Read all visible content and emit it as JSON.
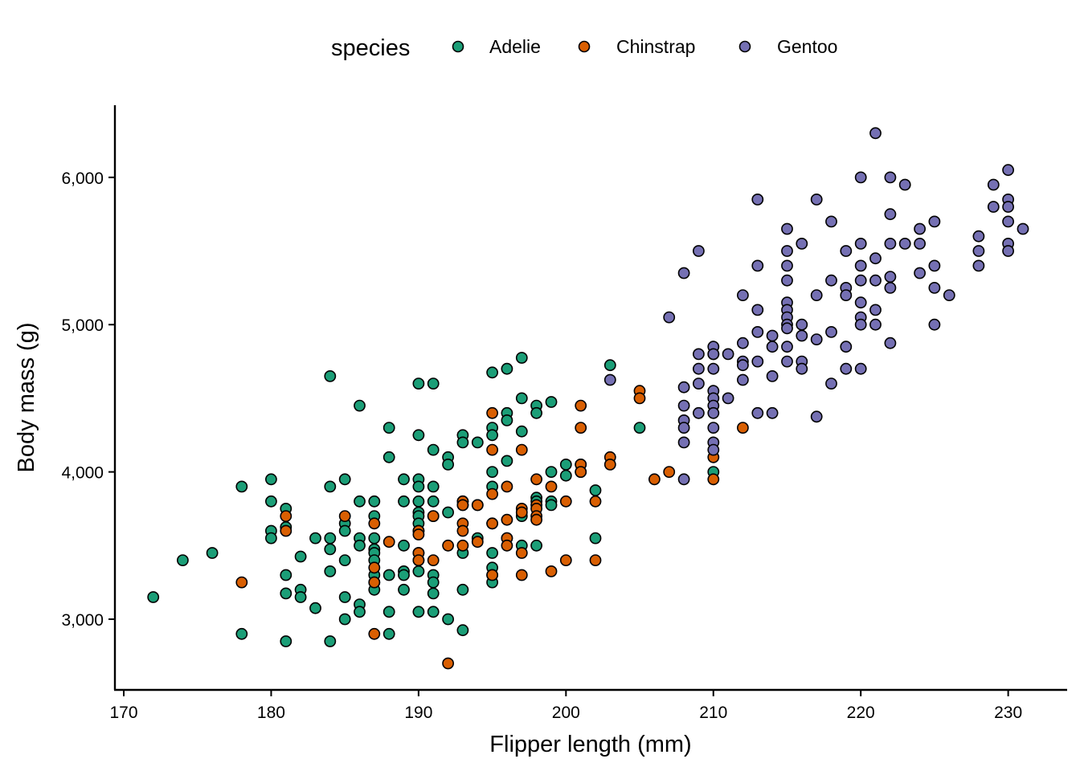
{
  "chart_data": {
    "type": "scatter",
    "title": "",
    "xlabel": "Flipper length (mm)",
    "ylabel": "Body mass (g)",
    "xlim": [
      169.4,
      234
    ],
    "ylim": [
      2520,
      6490
    ],
    "xticks": [
      170,
      180,
      190,
      200,
      210,
      220,
      230
    ],
    "xtick_labels": [
      "170",
      "180",
      "190",
      "200",
      "210",
      "220",
      "230"
    ],
    "yticks": [
      3000,
      4000,
      5000,
      6000
    ],
    "ytick_labels": [
      "3,000",
      "4,000",
      "5,000",
      "6,000"
    ],
    "grid": false,
    "legend": {
      "title": "species",
      "position": "top",
      "entries": [
        "Adelie",
        "Chinstrap",
        "Gentoo"
      ]
    },
    "colors": {
      "Adelie": "#1b9e77",
      "Chinstrap": "#d95f02",
      "Gentoo": "#7570b3",
      "outline": "#000000"
    },
    "series": [
      {
        "name": "Adelie",
        "points": [
          [
            172,
            3150
          ],
          [
            174,
            3400
          ],
          [
            176,
            3450
          ],
          [
            178,
            3900
          ],
          [
            178,
            2900
          ],
          [
            180,
            3950
          ],
          [
            180,
            3800
          ],
          [
            180,
            3600
          ],
          [
            180,
            3550
          ],
          [
            181,
            3750
          ],
          [
            181,
            3625
          ],
          [
            181,
            3300
          ],
          [
            181,
            3175
          ],
          [
            181,
            2850
          ],
          [
            182,
            3200
          ],
          [
            182,
            3150
          ],
          [
            182,
            3425
          ],
          [
            183,
            3550
          ],
          [
            183,
            3075
          ],
          [
            184,
            4650
          ],
          [
            184,
            3900
          ],
          [
            184,
            3550
          ],
          [
            184,
            3475
          ],
          [
            184,
            3325
          ],
          [
            184,
            2850
          ],
          [
            185,
            3950
          ],
          [
            185,
            3650
          ],
          [
            185,
            3600
          ],
          [
            185,
            3400
          ],
          [
            185,
            3150
          ],
          [
            185,
            3000
          ],
          [
            186,
            4450
          ],
          [
            186,
            3800
          ],
          [
            186,
            3550
          ],
          [
            186,
            3500
          ],
          [
            186,
            3100
          ],
          [
            186,
            3050
          ],
          [
            187,
            3800
          ],
          [
            187,
            3700
          ],
          [
            187,
            3550
          ],
          [
            187,
            3475
          ],
          [
            187,
            3450
          ],
          [
            187,
            3400
          ],
          [
            187,
            3300
          ],
          [
            187,
            3250
          ],
          [
            187,
            3200
          ],
          [
            188,
            4300
          ],
          [
            188,
            4100
          ],
          [
            188,
            3300
          ],
          [
            188,
            3050
          ],
          [
            188,
            2900
          ],
          [
            189,
            3950
          ],
          [
            189,
            3800
          ],
          [
            189,
            3500
          ],
          [
            189,
            3325
          ],
          [
            189,
            3300
          ],
          [
            189,
            3200
          ],
          [
            190,
            4600
          ],
          [
            190,
            4250
          ],
          [
            190,
            3950
          ],
          [
            190,
            3900
          ],
          [
            190,
            3800
          ],
          [
            190,
            3725
          ],
          [
            190,
            3700
          ],
          [
            190,
            3650
          ],
          [
            190,
            3600
          ],
          [
            190,
            3450
          ],
          [
            190,
            3400
          ],
          [
            190,
            3325
          ],
          [
            190,
            3050
          ],
          [
            191,
            4600
          ],
          [
            191,
            4150
          ],
          [
            191,
            3900
          ],
          [
            191,
            3800
          ],
          [
            191,
            3700
          ],
          [
            191,
            3300
          ],
          [
            191,
            3250
          ],
          [
            191,
            3175
          ],
          [
            191,
            3050
          ],
          [
            192,
            4100
          ],
          [
            192,
            4050
          ],
          [
            192,
            3725
          ],
          [
            192,
            3000
          ],
          [
            193,
            4250
          ],
          [
            193,
            4200
          ],
          [
            193,
            3800
          ],
          [
            193,
            3775
          ],
          [
            193,
            3450
          ],
          [
            193,
            3200
          ],
          [
            193,
            2925
          ],
          [
            194,
            4200
          ],
          [
            194,
            3775
          ],
          [
            194,
            3550
          ],
          [
            195,
            4675
          ],
          [
            195,
            4300
          ],
          [
            195,
            4250
          ],
          [
            195,
            4000
          ],
          [
            195,
            3900
          ],
          [
            195,
            3650
          ],
          [
            195,
            3450
          ],
          [
            195,
            3350
          ],
          [
            195,
            3300
          ],
          [
            195,
            3250
          ],
          [
            196,
            4700
          ],
          [
            196,
            4400
          ],
          [
            196,
            4350
          ],
          [
            196,
            4075
          ],
          [
            196,
            3550
          ],
          [
            197,
            4775
          ],
          [
            197,
            4500
          ],
          [
            197,
            4275
          ],
          [
            197,
            3700
          ],
          [
            197,
            3500
          ],
          [
            198,
            4450
          ],
          [
            198,
            4400
          ],
          [
            198,
            3825
          ],
          [
            198,
            3800
          ],
          [
            198,
            3500
          ],
          [
            199,
            4475
          ],
          [
            199,
            4000
          ],
          [
            199,
            3800
          ],
          [
            199,
            3775
          ],
          [
            200,
            4050
          ],
          [
            200,
            3975
          ],
          [
            201,
            4000
          ],
          [
            201,
            4050
          ],
          [
            202,
            3875
          ],
          [
            202,
            3550
          ],
          [
            203,
            4725
          ],
          [
            205,
            4300
          ],
          [
            210,
            4000
          ]
        ]
      },
      {
        "name": "Chinstrap",
        "points": [
          [
            178,
            3250
          ],
          [
            181,
            3700
          ],
          [
            181,
            3600
          ],
          [
            185,
            3700
          ],
          [
            187,
            3650
          ],
          [
            187,
            3350
          ],
          [
            187,
            3250
          ],
          [
            187,
            2900
          ],
          [
            188,
            3525
          ],
          [
            190,
            3600
          ],
          [
            190,
            3575
          ],
          [
            190,
            3450
          ],
          [
            190,
            3400
          ],
          [
            191,
            3700
          ],
          [
            191,
            3400
          ],
          [
            192,
            3500
          ],
          [
            192,
            2700
          ],
          [
            193,
            3800
          ],
          [
            193,
            3775
          ],
          [
            193,
            3650
          ],
          [
            193,
            3600
          ],
          [
            193,
            3500
          ],
          [
            194,
            3775
          ],
          [
            194,
            3525
          ],
          [
            195,
            4400
          ],
          [
            195,
            4150
          ],
          [
            195,
            3850
          ],
          [
            195,
            3650
          ],
          [
            195,
            3300
          ],
          [
            196,
            3900
          ],
          [
            196,
            3675
          ],
          [
            196,
            3550
          ],
          [
            196,
            3500
          ],
          [
            197,
            4150
          ],
          [
            197,
            3750
          ],
          [
            197,
            3725
          ],
          [
            197,
            3450
          ],
          [
            197,
            3300
          ],
          [
            198,
            3950
          ],
          [
            198,
            3775
          ],
          [
            198,
            3750
          ],
          [
            198,
            3700
          ],
          [
            198,
            3675
          ],
          [
            199,
            3900
          ],
          [
            199,
            3325
          ],
          [
            200,
            3800
          ],
          [
            200,
            3400
          ],
          [
            201,
            4450
          ],
          [
            201,
            4300
          ],
          [
            201,
            4050
          ],
          [
            201,
            4000
          ],
          [
            202,
            3800
          ],
          [
            202,
            3400
          ],
          [
            203,
            4100
          ],
          [
            203,
            4050
          ],
          [
            205,
            4550
          ],
          [
            205,
            4500
          ],
          [
            206,
            3950
          ],
          [
            207,
            4000
          ],
          [
            210,
            4800
          ],
          [
            210,
            4100
          ],
          [
            210,
            3950
          ],
          [
            212,
            4300
          ]
        ]
      },
      {
        "name": "Gentoo",
        "points": [
          [
            203,
            4625
          ],
          [
            207,
            5050
          ],
          [
            208,
            5350
          ],
          [
            208,
            4575
          ],
          [
            208,
            4450
          ],
          [
            208,
            4350
          ],
          [
            208,
            4300
          ],
          [
            208,
            4200
          ],
          [
            208,
            3950
          ],
          [
            209,
            5500
          ],
          [
            209,
            4800
          ],
          [
            209,
            4700
          ],
          [
            209,
            4600
          ],
          [
            209,
            4400
          ],
          [
            210,
            4850
          ],
          [
            210,
            4800
          ],
          [
            210,
            4700
          ],
          [
            210,
            4550
          ],
          [
            210,
            4500
          ],
          [
            210,
            4450
          ],
          [
            210,
            4400
          ],
          [
            210,
            4300
          ],
          [
            210,
            4200
          ],
          [
            210,
            4150
          ],
          [
            211,
            4800
          ],
          [
            211,
            4500
          ],
          [
            212,
            5200
          ],
          [
            212,
            4875
          ],
          [
            212,
            4750
          ],
          [
            212,
            4725
          ],
          [
            212,
            4625
          ],
          [
            213,
            5850
          ],
          [
            213,
            5400
          ],
          [
            213,
            5100
          ],
          [
            213,
            4950
          ],
          [
            213,
            4750
          ],
          [
            213,
            4400
          ],
          [
            214,
            4925
          ],
          [
            214,
            4850
          ],
          [
            214,
            4650
          ],
          [
            214,
            4400
          ],
          [
            215,
            5650
          ],
          [
            215,
            5500
          ],
          [
            215,
            5400
          ],
          [
            215,
            5300
          ],
          [
            215,
            5150
          ],
          [
            215,
            5100
          ],
          [
            215,
            5050
          ],
          [
            215,
            5000
          ],
          [
            215,
            4975
          ],
          [
            215,
            4850
          ],
          [
            215,
            4750
          ],
          [
            216,
            5550
          ],
          [
            216,
            5000
          ],
          [
            216,
            4925
          ],
          [
            216,
            4750
          ],
          [
            216,
            4700
          ],
          [
            217,
            5850
          ],
          [
            217,
            5200
          ],
          [
            217,
            4900
          ],
          [
            217,
            4375
          ],
          [
            218,
            5700
          ],
          [
            218,
            5300
          ],
          [
            218,
            4950
          ],
          [
            218,
            4600
          ],
          [
            219,
            5500
          ],
          [
            219,
            5250
          ],
          [
            219,
            5200
          ],
          [
            219,
            4850
          ],
          [
            219,
            4700
          ],
          [
            220,
            6000
          ],
          [
            220,
            5550
          ],
          [
            220,
            5400
          ],
          [
            220,
            5300
          ],
          [
            220,
            5150
          ],
          [
            220,
            5050
          ],
          [
            220,
            5000
          ],
          [
            220,
            4700
          ],
          [
            221,
            6300
          ],
          [
            221,
            5450
          ],
          [
            221,
            5300
          ],
          [
            221,
            5100
          ],
          [
            221,
            5000
          ],
          [
            222,
            6000
          ],
          [
            222,
            5750
          ],
          [
            222,
            5550
          ],
          [
            222,
            5325
          ],
          [
            222,
            5250
          ],
          [
            222,
            4875
          ],
          [
            223,
            5950
          ],
          [
            223,
            5550
          ],
          [
            224,
            5650
          ],
          [
            224,
            5550
          ],
          [
            224,
            5350
          ],
          [
            225,
            5700
          ],
          [
            225,
            5400
          ],
          [
            225,
            5250
          ],
          [
            225,
            5000
          ],
          [
            226,
            5200
          ],
          [
            228,
            5600
          ],
          [
            228,
            5500
          ],
          [
            228,
            5400
          ],
          [
            229,
            5950
          ],
          [
            229,
            5800
          ],
          [
            230,
            6050
          ],
          [
            230,
            5850
          ],
          [
            230,
            5800
          ],
          [
            230,
            5700
          ],
          [
            230,
            5550
          ],
          [
            230,
            5500
          ],
          [
            231,
            5650
          ]
        ]
      }
    ]
  }
}
